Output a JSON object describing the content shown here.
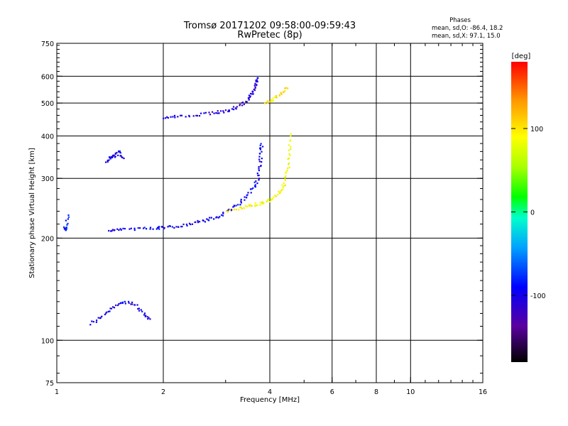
{
  "chart_data": {
    "type": "scatter",
    "title": "Tromsø 20171202 09:58:00-09:59:43",
    "subtitle": "RwPretec (8p)",
    "xlabel": "Frequency [MHz]",
    "ylabel": "Stationary phase Virtual Height [km]",
    "x_scale": "log",
    "y_scale": "log",
    "xlim": [
      1,
      16
    ],
    "ylim": [
      75,
      750
    ],
    "x_ticks": [
      "1",
      "2",
      "4",
      "6",
      "8",
      "10",
      "16"
    ],
    "y_ticks": [
      "75",
      "100",
      "200",
      "300",
      "400",
      "500",
      "600",
      "750"
    ],
    "x_grid": [
      2,
      4,
      6,
      8,
      10
    ],
    "y_grid": [
      100,
      200,
      300,
      400,
      500,
      600
    ],
    "phase_info": {
      "label": "Phases",
      "line_o": "mean, sd,O: -86.4, 18.2",
      "line_x": "mean, sd,X:  97.1, 15.0"
    },
    "colorbar": {
      "label": "[deg]",
      "range": [
        -180,
        180
      ],
      "ticks": [
        "100",
        "0",
        "-100"
      ],
      "tick_values": [
        100,
        0,
        -100
      ]
    },
    "traces": [
      {
        "x": [
          1.05,
          1.06,
          1.08
        ],
        "y": [
          212,
          215,
          235
        ],
        "phase": -80
      },
      {
        "x": [
          1.4,
          1.5,
          1.7,
          1.9,
          2.0,
          2.2,
          2.4,
          2.6,
          2.8,
          3.0,
          3.2,
          3.4,
          3.6,
          3.7,
          3.75,
          3.78,
          3.8
        ],
        "y": [
          210,
          212,
          213,
          214,
          215,
          217,
          220,
          225,
          230,
          238,
          248,
          262,
          282,
          300,
          330,
          360,
          380
        ],
        "phase": -95
      },
      {
        "x": [
          3.0,
          3.3,
          3.5,
          3.7,
          3.9,
          4.1,
          4.3,
          4.4,
          4.5,
          4.55,
          4.6
        ],
        "y": [
          240,
          245,
          248,
          252,
          256,
          262,
          275,
          290,
          320,
          360,
          410
        ],
        "phase": 90
      },
      {
        "x": [
          2.0,
          2.2,
          2.5,
          2.8,
          3.0,
          3.2,
          3.4,
          3.5,
          3.6,
          3.65,
          3.7
        ],
        "y": [
          450,
          458,
          462,
          468,
          474,
          485,
          500,
          520,
          545,
          570,
          600
        ],
        "phase": -110
      },
      {
        "x": [
          3.9,
          4.1,
          4.3,
          4.5
        ],
        "y": [
          500,
          510,
          535,
          560
        ],
        "phase": 100
      },
      {
        "x": [
          1.38,
          1.42,
          1.46,
          1.5,
          1.55
        ],
        "y": [
          335,
          345,
          350,
          360,
          340
        ],
        "phase": -100
      },
      {
        "x": [
          1.25,
          1.35,
          1.45,
          1.55,
          1.65,
          1.75,
          1.85
        ],
        "y": [
          112,
          118,
          125,
          130,
          128,
          120,
          115
        ],
        "phase": -100
      }
    ]
  }
}
